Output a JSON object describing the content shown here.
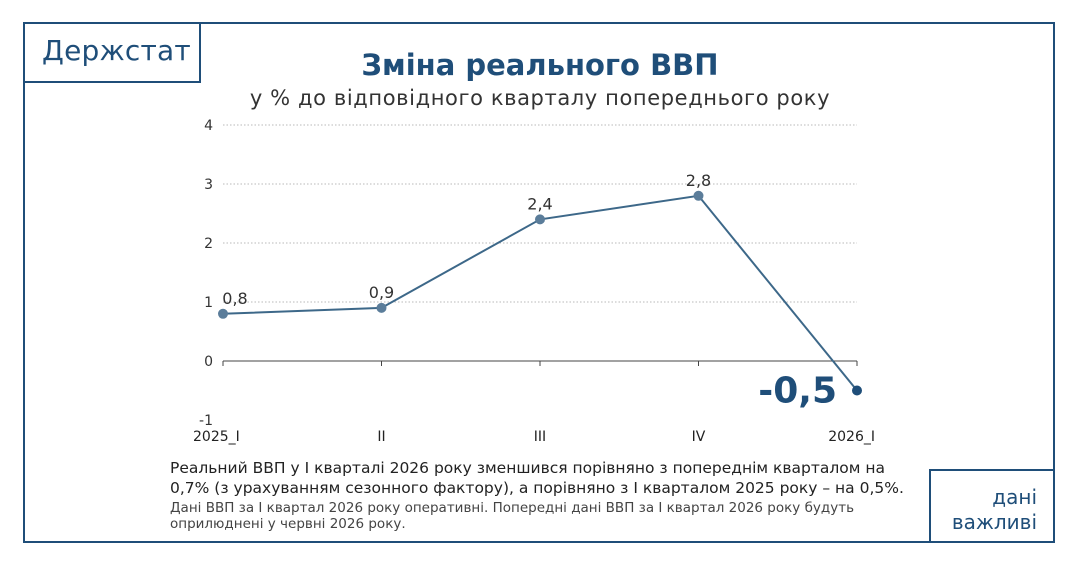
{
  "brand": {
    "logo_text": "Держстат",
    "color": "#1f4e79"
  },
  "header": {
    "title": "Зміна реального ВВП",
    "subtitle": "у % до відповідного кварталу попереднього року"
  },
  "chart_data": {
    "type": "line",
    "title": "Зміна реального ВВП",
    "subtitle": "у % до відповідного кварталу попереднього року",
    "categories": [
      "2025_I",
      "II",
      "III",
      "IV",
      "2026_I"
    ],
    "values": [
      0.8,
      0.9,
      2.4,
      2.8,
      -0.5
    ],
    "data_labels": [
      "0,8",
      "0,9",
      "2,4",
      "2,8",
      "-0,5"
    ],
    "y_ticks": [
      "-1",
      "0",
      "1",
      "2",
      "3",
      "4"
    ],
    "ylim": [
      -1,
      4
    ],
    "grid": true,
    "line_color": "#3d6889",
    "highlight_color": "#1f4e79"
  },
  "footer": {
    "description": "Реальний ВВП у І кварталі 2026 року зменшився порівняно з попереднім кварталом на 0,7% (з урахуванням сезонного фактору), а порівняно з І кварталом 2025 року – на 0,5%.",
    "note": "Дані ВВП за І квартал 2026 року оперативні. Попередні дані ВВП за І квартал 2026 року будуть оприлюднені у червні 2026 року.",
    "badge_line1": "дані",
    "badge_line2": "важливі"
  }
}
